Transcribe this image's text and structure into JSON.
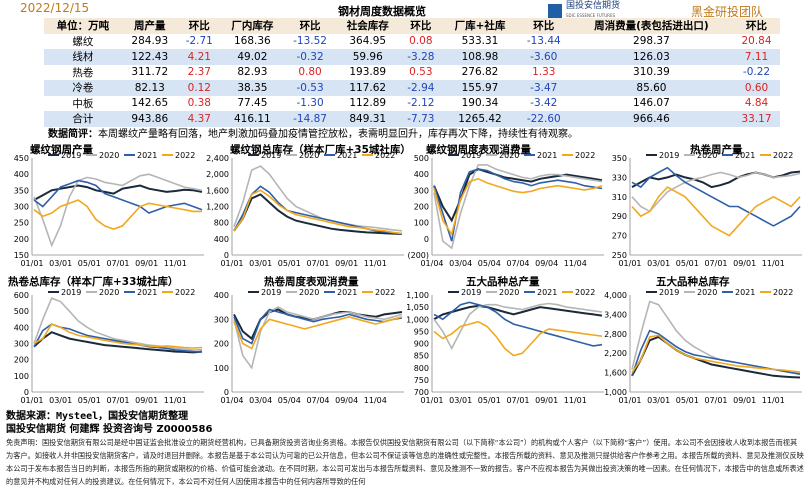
{
  "header": {
    "date": "2022/12/15",
    "title": "钢材周度数据概览",
    "logo_cn": "国投安信期货",
    "logo_en": "SDIC ESSENCE FUTURES",
    "team": "黑金研投团队"
  },
  "table": {
    "columns": [
      "单位：万吨",
      "周产量",
      "环比",
      "厂内库存",
      "环比",
      "社会库存",
      "环比",
      "厂库+社库",
      "环比",
      "周消费量(表包括进出口)",
      "环比"
    ],
    "rows": [
      [
        "螺纹",
        "284.93",
        "-2.71",
        "168.36",
        "-13.52",
        "364.95",
        "0.08",
        "533.31",
        "-13.44",
        "298.37",
        "20.84"
      ],
      [
        "线材",
        "122.43",
        "4.21",
        "49.02",
        "-0.32",
        "59.96",
        "-3.28",
        "108.98",
        "-3.60",
        "126.03",
        "7.11"
      ],
      [
        "热卷",
        "311.72",
        "2.37",
        "82.93",
        "0.80",
        "193.89",
        "0.53",
        "276.82",
        "1.33",
        "310.39",
        "-0.22"
      ],
      [
        "冷卷",
        "82.13",
        "0.12",
        "38.35",
        "-0.53",
        "117.62",
        "-2.94",
        "155.97",
        "-3.47",
        "85.60",
        "0.60"
      ],
      [
        "中板",
        "142.65",
        "0.38",
        "77.45",
        "-1.30",
        "112.89",
        "-2.12",
        "190.34",
        "-3.42",
        "146.07",
        "4.84"
      ],
      [
        "合计",
        "943.86",
        "4.37",
        "416.11",
        "-14.87",
        "849.31",
        "-7.73",
        "1265.42",
        "-22.60",
        "966.46",
        "33.17"
      ]
    ]
  },
  "summary": {
    "label": "数据简评：",
    "text": "本周螺纹产量略有回落，地产刺激加码叠加疫情管控放松，表需明显回升，库存再次下降，持续性有待观察。"
  },
  "legend": [
    "2019",
    "2020",
    "2021",
    "2022"
  ],
  "colors": {
    "2019": "#1a2a3a",
    "2020": "#b5b5b5",
    "2021": "#2e5fa8",
    "2022": "#f2a81d"
  },
  "charts": [
    {
      "title": "螺纹钢周产量",
      "yticks": [
        "150",
        "200",
        "250",
        "300",
        "350",
        "400",
        "450"
      ],
      "ymin": 150,
      "ymax": 450,
      "xticks": [
        "01/01",
        "03/01",
        "05/01",
        "07/01",
        "09/01",
        "11/01"
      ],
      "series": {
        "2019": [
          320,
          335,
          350,
          355,
          360,
          365,
          360,
          350,
          345,
          340,
          355,
          360,
          365,
          355,
          350,
          345,
          348,
          352,
          350,
          345
        ],
        "2020": [
          330,
          260,
          180,
          240,
          330,
          380,
          390,
          385,
          375,
          370,
          365,
          380,
          395,
          400,
          390,
          380,
          370,
          360,
          355,
          350
        ],
        "2021": [
          320,
          300,
          330,
          360,
          370,
          380,
          375,
          365,
          340,
          330,
          320,
          310,
          300,
          280,
          290,
          300,
          305,
          310,
          300,
          290
        ],
        "2022": [
          290,
          270,
          280,
          300,
          310,
          320,
          300,
          260,
          240,
          230,
          240,
          270,
          300,
          310,
          305,
          300,
          295,
          290,
          285,
          285
        ]
      }
    },
    {
      "title": "螺纹钢总库存（样本厂库+35城社库）",
      "yticks": [
        "0",
        "400",
        "800",
        "1,200",
        "1,600",
        "2,000",
        "2,400"
      ],
      "ymin": 0,
      "ymax": 2400,
      "xticks": [
        "01/01",
        "03/01",
        "05/01",
        "07/01",
        "09/01",
        "11/01"
      ],
      "series": {
        "2019": [
          600,
          900,
          1400,
          1500,
          1300,
          1100,
          950,
          850,
          800,
          750,
          700,
          650,
          620,
          600,
          580,
          560,
          550,
          540,
          530,
          520
        ],
        "2020": [
          700,
          1300,
          2100,
          2200,
          2000,
          1700,
          1400,
          1200,
          1100,
          1000,
          900,
          850,
          800,
          760,
          720,
          700,
          680,
          650,
          620,
          600
        ],
        "2021": [
          600,
          1000,
          1500,
          1700,
          1550,
          1300,
          1100,
          1050,
          1000,
          950,
          900,
          850,
          800,
          750,
          700,
          650,
          600,
          570,
          550,
          530
        ],
        "2022": [
          600,
          900,
          1500,
          1600,
          1450,
          1250,
          1100,
          1000,
          950,
          900,
          850,
          800,
          750,
          700,
          680,
          650,
          620,
          600,
          560,
          530
        ]
      }
    },
    {
      "title": "螺纹钢周度表观消费量",
      "yticks": [
        "(200)",
        "0",
        "100",
        "200",
        "300",
        "400",
        "500"
      ],
      "ymin": -200,
      "ymax": 500,
      "xticks": [
        "01/04",
        "03/04",
        "05/04",
        "07/04",
        "09/04",
        "11/04"
      ],
      "series": {
        "2019": [
          300,
          150,
          50,
          200,
          380,
          420,
          400,
          380,
          360,
          350,
          340,
          330,
          350,
          360,
          370,
          380,
          370,
          360,
          350,
          340
        ],
        "2020": [
          250,
          -100,
          -150,
          100,
          300,
          450,
          450,
          420,
          400,
          380,
          360,
          350,
          370,
          380,
          380,
          370,
          360,
          350,
          340,
          330
        ],
        "2021": [
          300,
          100,
          -100,
          250,
          400,
          420,
          410,
          380,
          350,
          330,
          320,
          300,
          320,
          330,
          340,
          330,
          320,
          300,
          290,
          280
        ],
        "2022": [
          280,
          50,
          -50,
          200,
          330,
          350,
          320,
          300,
          280,
          260,
          250,
          260,
          280,
          290,
          300,
          290,
          280,
          270,
          280,
          300
        ]
      }
    },
    {
      "title": "热卷周产量",
      "yticks": [
        "250",
        "270",
        "290",
        "310",
        "330",
        "350"
      ],
      "ymin": 250,
      "ymax": 350,
      "xticks": [
        "01/01",
        "03/01",
        "05/01",
        "07/01",
        "09/01",
        "11/01"
      ],
      "series": {
        "2019": [
          320,
          325,
          330,
          328,
          330,
          333,
          330,
          328,
          325,
          320,
          322,
          325,
          330,
          333,
          335,
          333,
          330,
          332,
          335,
          336
        ],
        "2020": [
          310,
          300,
          295,
          305,
          315,
          320,
          325,
          328,
          330,
          333,
          335,
          333,
          330,
          332,
          335,
          333,
          330,
          331,
          332,
          334
        ],
        "2021": [
          325,
          320,
          330,
          335,
          340,
          332,
          325,
          320,
          315,
          310,
          305,
          300,
          300,
          295,
          290,
          285,
          280,
          285,
          290,
          300
        ],
        "2022": [
          300,
          290,
          295,
          310,
          320,
          315,
          310,
          300,
          290,
          280,
          275,
          270,
          280,
          290,
          300,
          305,
          310,
          305,
          300,
          310
        ]
      }
    },
    {
      "title": "热卷总库存（样本厂库+33城社库）",
      "yticks": [
        "0",
        "100",
        "200",
        "300",
        "400",
        "500",
        "600"
      ],
      "ymin": 0,
      "ymax": 600,
      "xticks": [
        "01/01",
        "03/01",
        "05/01",
        "07/01",
        "09/01",
        "11/01"
      ],
      "series": {
        "2019": [
          280,
          330,
          370,
          350,
          330,
          320,
          310,
          300,
          290,
          285,
          280,
          275,
          270,
          265,
          260,
          255,
          250,
          248,
          245,
          250
        ],
        "2020": [
          300,
          450,
          580,
          560,
          500,
          440,
          400,
          370,
          350,
          330,
          320,
          310,
          300,
          290,
          285,
          280,
          270,
          265,
          260,
          262
        ],
        "2021": [
          280,
          380,
          420,
          400,
          390,
          370,
          350,
          340,
          330,
          320,
          310,
          300,
          290,
          280,
          275,
          270,
          260,
          255,
          250,
          248
        ],
        "2022": [
          300,
          330,
          420,
          400,
          370,
          350,
          340,
          330,
          320,
          310,
          300,
          295,
          290,
          285,
          280,
          285,
          280,
          275,
          272,
          275
        ]
      }
    },
    {
      "title": "热卷周度表观消费量",
      "yticks": [
        "0",
        "100",
        "200",
        "300",
        "400"
      ],
      "ymin": 0,
      "ymax": 400,
      "xticks": [
        "01/04",
        "03/04",
        "05/04",
        "07/04",
        "09/04",
        "11/04"
      ],
      "series": {
        "2019": [
          320,
          250,
          220,
          300,
          330,
          340,
          320,
          310,
          305,
          300,
          310,
          320,
          330,
          330,
          320,
          315,
          310,
          320,
          325,
          330
        ],
        "2020": [
          300,
          150,
          100,
          250,
          330,
          350,
          330,
          320,
          310,
          300,
          310,
          320,
          325,
          330,
          320,
          310,
          305,
          300,
          310,
          320
        ],
        "2021": [
          310,
          220,
          200,
          300,
          340,
          330,
          320,
          310,
          300,
          290,
          300,
          305,
          310,
          320,
          310,
          300,
          295,
          290,
          300,
          305
        ],
        "2022": [
          290,
          200,
          180,
          260,
          300,
          290,
          280,
          270,
          260,
          270,
          280,
          290,
          300,
          310,
          300,
          290,
          280,
          290,
          300,
          310
        ]
      }
    },
    {
      "title": "五大品种总产量",
      "yticks": [
        "700",
        "750",
        "800",
        "850",
        "900",
        "950",
        "1,000",
        "1,050",
        "1,100"
      ],
      "ymin": 700,
      "ymax": 1100,
      "xticks": [
        "01/01",
        "03/01",
        "05/01",
        "07/01",
        "09/01",
        "11/01"
      ],
      "series": {
        "2019": [
          1000,
          1020,
          1030,
          1040,
          1050,
          1055,
          1050,
          1040,
          1030,
          1020,
          1030,
          1040,
          1050,
          1045,
          1040,
          1035,
          1030,
          1025,
          1020,
          1015
        ],
        "2020": [
          1000,
          950,
          880,
          950,
          1020,
          1050,
          1060,
          1060,
          1050,
          1045,
          1040,
          1050,
          1060,
          1065,
          1060,
          1050,
          1045,
          1040,
          1035,
          1030
        ],
        "2021": [
          1020,
          1000,
          1030,
          1060,
          1070,
          1060,
          1050,
          1030,
          1000,
          980,
          970,
          960,
          950,
          940,
          930,
          920,
          910,
          900,
          890,
          895
        ],
        "2022": [
          950,
          920,
          940,
          970,
          980,
          990,
          970,
          930,
          880,
          850,
          860,
          900,
          940,
          960,
          955,
          950,
          945,
          940,
          935,
          930
        ]
      }
    },
    {
      "title": "五大品种总库存",
      "yticks": [
        "1,000",
        "1,600",
        "2,200",
        "2,800",
        "3,400",
        "4,000"
      ],
      "ymin": 1000,
      "ymax": 4000,
      "xticks": [
        "01/01",
        "03/01",
        "05/01",
        "07/01",
        "09/01",
        "11/01"
      ],
      "series": {
        "2019": [
          1500,
          2000,
          2600,
          2700,
          2500,
          2300,
          2150,
          2050,
          1950,
          1850,
          1800,
          1750,
          1700,
          1650,
          1600,
          1550,
          1500,
          1480,
          1460,
          1450
        ],
        "2020": [
          1700,
          2800,
          3800,
          3700,
          3300,
          2900,
          2600,
          2400,
          2250,
          2100,
          2000,
          1950,
          1900,
          1850,
          1800,
          1750,
          1700,
          1650,
          1600,
          1580
        ],
        "2021": [
          1500,
          2300,
          2900,
          2800,
          2600,
          2400,
          2250,
          2150,
          2100,
          2050,
          2000,
          1950,
          1900,
          1850,
          1800,
          1750,
          1700,
          1650,
          1600,
          1550
        ],
        "2022": [
          1600,
          2000,
          2700,
          2750,
          2500,
          2300,
          2150,
          2050,
          2000,
          1950,
          1900,
          1850,
          1800,
          1780,
          1750,
          1720,
          1700,
          1680,
          1650,
          1620
        ]
      }
    }
  ],
  "footer": {
    "source1": "数据来源：Mysteel，国投安信期货整理",
    "source2": "国投安信期货 何建辉 投资咨询号 Z0000586",
    "disclaimer": "免责声明：国投安信期货有限公司是经中国证监会批准设立的期货经营机构，已具备期货投资咨询业务资格。本报告仅供国投安信期货有限公司（以下简称“本公司”）的机构或个人客户（以下简称“客户”）使用。本公司不会因接收人收到本报告而视其为客户。如接收人并非国投安信期货客户，请及时退回并删除。本报告是基于本公司认为可靠的已公开信息，但本公司不保证该等信息的准确性或完整性。本报告所载的资料、意见及推测只提供给客户作参考之用。本报告所载的资料、意见及推测仅反映本公司于发布本报告当日的判断，本报告所指的期货或期权的价格、价值可能会波动。在不同时期，本公司可发出与本报告所载资料、意见及推测不一致的报告。客户不应视本报告为其做出投资决策的唯一因素。在任何情况下，本报告中的信息或所表述的意见并不构成对任何人的投资建议。在任何情况下，本公司不对任何人因使用本报告中的任何内容所导致的任何"
  }
}
